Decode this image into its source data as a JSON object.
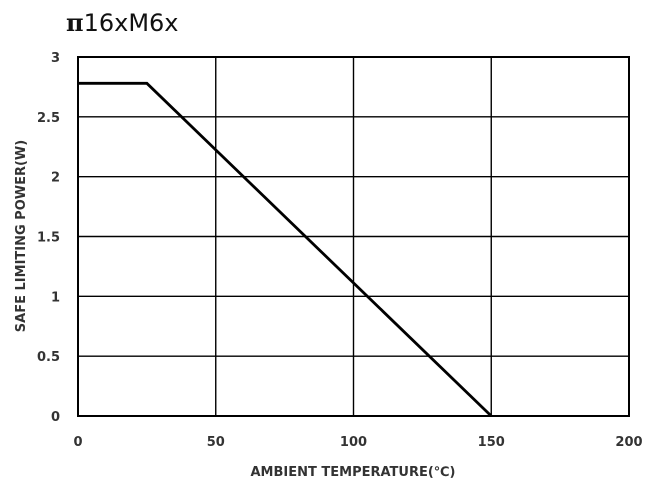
{
  "title": {
    "prefix": "π",
    "rest": "16xM6x"
  },
  "chart_data": {
    "type": "line",
    "title": "π16xM6x",
    "xlabel": "AMBIENT TEMPERATURE(℃)",
    "ylabel": "SAFE LIMITING POWER(W)",
    "xlim": [
      0,
      200
    ],
    "ylim": [
      0,
      3
    ],
    "xticks": [
      "0",
      "50",
      "100",
      "150",
      "200"
    ],
    "yticks": [
      "0",
      "0.5",
      "1",
      "1.5",
      "2",
      "2.5",
      "3"
    ],
    "grid": true,
    "series": [
      {
        "x": [
          0,
          25,
          150
        ],
        "y": [
          2.78,
          2.78,
          0
        ]
      }
    ]
  },
  "colors": {
    "line": "#000000",
    "grid": "#000000",
    "text": "#333333"
  }
}
